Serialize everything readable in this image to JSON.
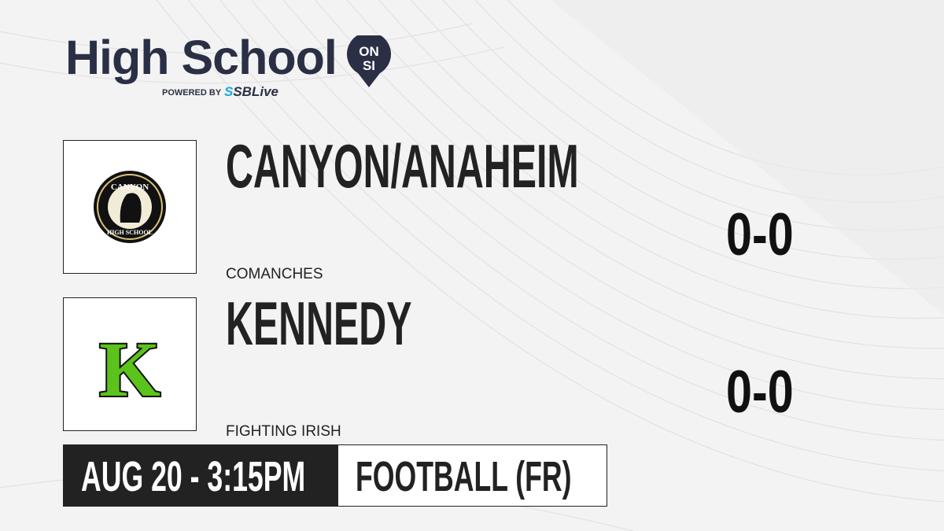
{
  "brand": {
    "title": "High School",
    "badge_top": "ON",
    "badge_bottom": "SI",
    "powered_by": "POWERED BY",
    "partner_prefix": "S",
    "partner": "SBLive"
  },
  "teams": [
    {
      "name": "CANYON/ANAHEIM",
      "mascot": "COMANCHES",
      "score": "0-0",
      "logo_text_top": "CANYON",
      "logo_text_bottom": "HIGH SCHOOL"
    },
    {
      "name": "KENNEDY",
      "mascot": "FIGHTING IRISH",
      "score": "0-0",
      "logo_letter": "K"
    }
  ],
  "game": {
    "datetime": "AUG 20 - 3:15PM",
    "sport": "FOOTBALL (FR)"
  },
  "colors": {
    "brand": "#2b2f45",
    "accent": "#1aa7e8",
    "dark": "#222222",
    "kennedy_green": "#5cc21c"
  }
}
